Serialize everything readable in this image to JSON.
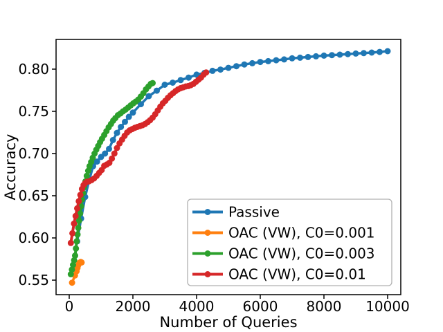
{
  "figure": {
    "background": "#ffffff",
    "frame_color": "#000000"
  },
  "chart_data": {
    "type": "line",
    "title": "",
    "xlabel": "Number of Queries",
    "ylabel": "Accuracy",
    "xlim": [
      -413,
      10413
    ],
    "ylim": [
      0.5328,
      0.8352
    ],
    "grid": false,
    "xticks": {
      "values": [
        0,
        2000,
        4000,
        6000,
        8000,
        10000
      ],
      "labels": [
        "0",
        "2000",
        "4000",
        "6000",
        "8000",
        "10000"
      ]
    },
    "yticks": {
      "values": [
        0.55,
        0.6,
        0.65,
        0.7,
        0.75,
        0.8
      ],
      "labels": [
        "0.55",
        "0.60",
        "0.65",
        "0.70",
        "0.75",
        "0.80"
      ]
    },
    "legend": {
      "position": "lower right",
      "border_color": "#b0b0b0",
      "background": "#ffffff",
      "entries": [
        "Passive",
        "OAC (VW), C0=0.001",
        "OAC (VW), C0=0.003",
        "OAC (VW), C0=0.01"
      ]
    },
    "series": [
      {
        "name": "Passive",
        "color": "#1f77b4",
        "marker": "circle",
        "points": [
          [
            250,
            0.596
          ],
          [
            375,
            0.623
          ],
          [
            500,
            0.6485
          ],
          [
            625,
            0.668
          ],
          [
            750,
            0.685
          ],
          [
            875,
            0.6905
          ],
          [
            1000,
            0.696
          ],
          [
            1125,
            0.7
          ],
          [
            1250,
            0.7055
          ],
          [
            1375,
            0.716
          ],
          [
            1500,
            0.7245
          ],
          [
            1625,
            0.7315
          ],
          [
            1750,
            0.7375
          ],
          [
            1875,
            0.7435
          ],
          [
            2000,
            0.7485
          ],
          [
            2250,
            0.7585
          ],
          [
            2500,
            0.768
          ],
          [
            2750,
            0.7745
          ],
          [
            3000,
            0.7815
          ],
          [
            3250,
            0.784
          ],
          [
            3500,
            0.787
          ],
          [
            3750,
            0.79
          ],
          [
            4000,
            0.7935
          ],
          [
            4250,
            0.7955
          ],
          [
            4500,
            0.798
          ],
          [
            4750,
            0.7995
          ],
          [
            5000,
            0.8015
          ],
          [
            5250,
            0.8035
          ],
          [
            5500,
            0.8055
          ],
          [
            5750,
            0.807
          ],
          [
            6000,
            0.8085
          ],
          [
            6250,
            0.8095
          ],
          [
            6500,
            0.8105
          ],
          [
            6750,
            0.8115
          ],
          [
            7000,
            0.8128
          ],
          [
            7250,
            0.8136
          ],
          [
            7500,
            0.8144
          ],
          [
            7750,
            0.8152
          ],
          [
            8000,
            0.816
          ],
          [
            8250,
            0.8166
          ],
          [
            8500,
            0.8172
          ],
          [
            8750,
            0.8178
          ],
          [
            9000,
            0.8185
          ],
          [
            9250,
            0.819
          ],
          [
            9500,
            0.8196
          ],
          [
            9750,
            0.8204
          ],
          [
            10000,
            0.8213
          ]
        ]
      },
      {
        "name": "OAC (VW), C0=0.001",
        "color": "#ff7f0e",
        "marker": "circle",
        "points": [
          [
            90,
            0.547
          ],
          [
            180,
            0.5555
          ],
          [
            230,
            0.5605
          ],
          [
            260,
            0.5645
          ],
          [
            290,
            0.568
          ],
          [
            320,
            0.5705
          ],
          [
            360,
            0.5715
          ],
          [
            390,
            0.571
          ]
        ]
      },
      {
        "name": "OAC (VW), C0=0.003",
        "color": "#2ca02c",
        "marker": "circle",
        "points": [
          [
            50,
            0.557
          ],
          [
            85,
            0.5625
          ],
          [
            120,
            0.568
          ],
          [
            155,
            0.5735
          ],
          [
            185,
            0.579
          ],
          [
            210,
            0.5875
          ],
          [
            235,
            0.596
          ],
          [
            260,
            0.604
          ],
          [
            285,
            0.612
          ],
          [
            310,
            0.6205
          ],
          [
            340,
            0.629
          ],
          [
            370,
            0.6375
          ],
          [
            400,
            0.6455
          ],
          [
            435,
            0.653
          ],
          [
            470,
            0.66
          ],
          [
            510,
            0.667
          ],
          [
            550,
            0.6735
          ],
          [
            595,
            0.6795
          ],
          [
            640,
            0.685
          ],
          [
            690,
            0.69
          ],
          [
            740,
            0.695
          ],
          [
            795,
            0.7
          ],
          [
            850,
            0.7045
          ],
          [
            910,
            0.709
          ],
          [
            970,
            0.7135
          ],
          [
            1030,
            0.7175
          ],
          [
            1100,
            0.722
          ],
          [
            1170,
            0.7265
          ],
          [
            1240,
            0.731
          ],
          [
            1310,
            0.735
          ],
          [
            1380,
            0.739
          ],
          [
            1450,
            0.742
          ],
          [
            1530,
            0.7455
          ],
          [
            1610,
            0.7475
          ],
          [
            1690,
            0.75
          ],
          [
            1770,
            0.752
          ],
          [
            1850,
            0.7545
          ],
          [
            1930,
            0.757
          ],
          [
            2010,
            0.7595
          ],
          [
            2090,
            0.7615
          ],
          [
            2170,
            0.764
          ],
          [
            2250,
            0.7675
          ],
          [
            2330,
            0.7715
          ],
          [
            2410,
            0.776
          ],
          [
            2490,
            0.7795
          ],
          [
            2560,
            0.7825
          ],
          [
            2620,
            0.7835
          ]
        ]
      },
      {
        "name": "OAC (VW), C0=0.01",
        "color": "#d62728",
        "marker": "circle",
        "points": [
          [
            50,
            0.594
          ],
          [
            100,
            0.6055
          ],
          [
            150,
            0.617
          ],
          [
            200,
            0.626
          ],
          [
            250,
            0.635
          ],
          [
            300,
            0.6435
          ],
          [
            350,
            0.651
          ],
          [
            400,
            0.658
          ],
          [
            450,
            0.6625
          ],
          [
            500,
            0.665
          ],
          [
            550,
            0.6665
          ],
          [
            620,
            0.667
          ],
          [
            700,
            0.6685
          ],
          [
            780,
            0.6705
          ],
          [
            860,
            0.6735
          ],
          [
            940,
            0.677
          ],
          [
            1020,
            0.6805
          ],
          [
            1100,
            0.6855
          ],
          [
            1180,
            0.687
          ],
          [
            1260,
            0.689
          ],
          [
            1340,
            0.694
          ],
          [
            1420,
            0.7
          ],
          [
            1500,
            0.7065
          ],
          [
            1580,
            0.712
          ],
          [
            1660,
            0.7165
          ],
          [
            1740,
            0.721
          ],
          [
            1820,
            0.725
          ],
          [
            1900,
            0.7275
          ],
          [
            1980,
            0.729
          ],
          [
            2060,
            0.7305
          ],
          [
            2140,
            0.7315
          ],
          [
            2220,
            0.7325
          ],
          [
            2300,
            0.7335
          ],
          [
            2380,
            0.735
          ],
          [
            2460,
            0.737
          ],
          [
            2540,
            0.7395
          ],
          [
            2620,
            0.7425
          ],
          [
            2700,
            0.7465
          ],
          [
            2780,
            0.751
          ],
          [
            2860,
            0.7555
          ],
          [
            2940,
            0.7595
          ],
          [
            3020,
            0.7625
          ],
          [
            3100,
            0.766
          ],
          [
            3180,
            0.769
          ],
          [
            3260,
            0.7715
          ],
          [
            3340,
            0.774
          ],
          [
            3420,
            0.776
          ],
          [
            3500,
            0.7775
          ],
          [
            3580,
            0.7785
          ],
          [
            3660,
            0.7795
          ],
          [
            3740,
            0.78
          ],
          [
            3820,
            0.781
          ],
          [
            3900,
            0.7825
          ],
          [
            3980,
            0.785
          ],
          [
            4060,
            0.7875
          ],
          [
            4140,
            0.79
          ],
          [
            4220,
            0.7935
          ],
          [
            4300,
            0.796
          ]
        ]
      }
    ]
  }
}
